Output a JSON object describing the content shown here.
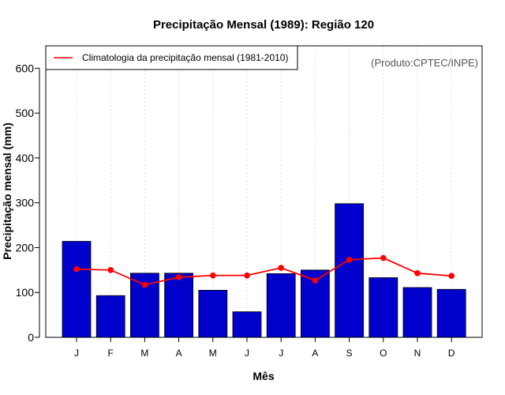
{
  "chart_data": {
    "type": "bar",
    "title": "Precipitação Mensal (1989): Região 120",
    "xlabel": "Mês",
    "ylabel": "Precipitação mensal (mm)",
    "source": "(Produto:CPTEC/INPE)",
    "categories": [
      "J",
      "F",
      "M",
      "A",
      "M",
      "J",
      "J",
      "A",
      "S",
      "O",
      "N",
      "D"
    ],
    "ylim": [
      0,
      650
    ],
    "yticks": [
      0,
      100,
      200,
      300,
      400,
      500,
      600
    ],
    "grid": "vertical dotted",
    "legend_position": "top-left",
    "series": [
      {
        "name": "Precipitação mensal 1989",
        "kind": "bar",
        "color": "#0000cc",
        "values": [
          214,
          93,
          143,
          143,
          105,
          57,
          142,
          150,
          298,
          133,
          111,
          107
        ]
      },
      {
        "name": "Climatologia da precipitação mensal (1981-2010)",
        "kind": "line",
        "color": "#ff0000",
        "values": [
          152,
          150,
          117,
          134,
          138,
          138,
          155,
          127,
          173,
          177,
          143,
          137
        ]
      }
    ]
  }
}
